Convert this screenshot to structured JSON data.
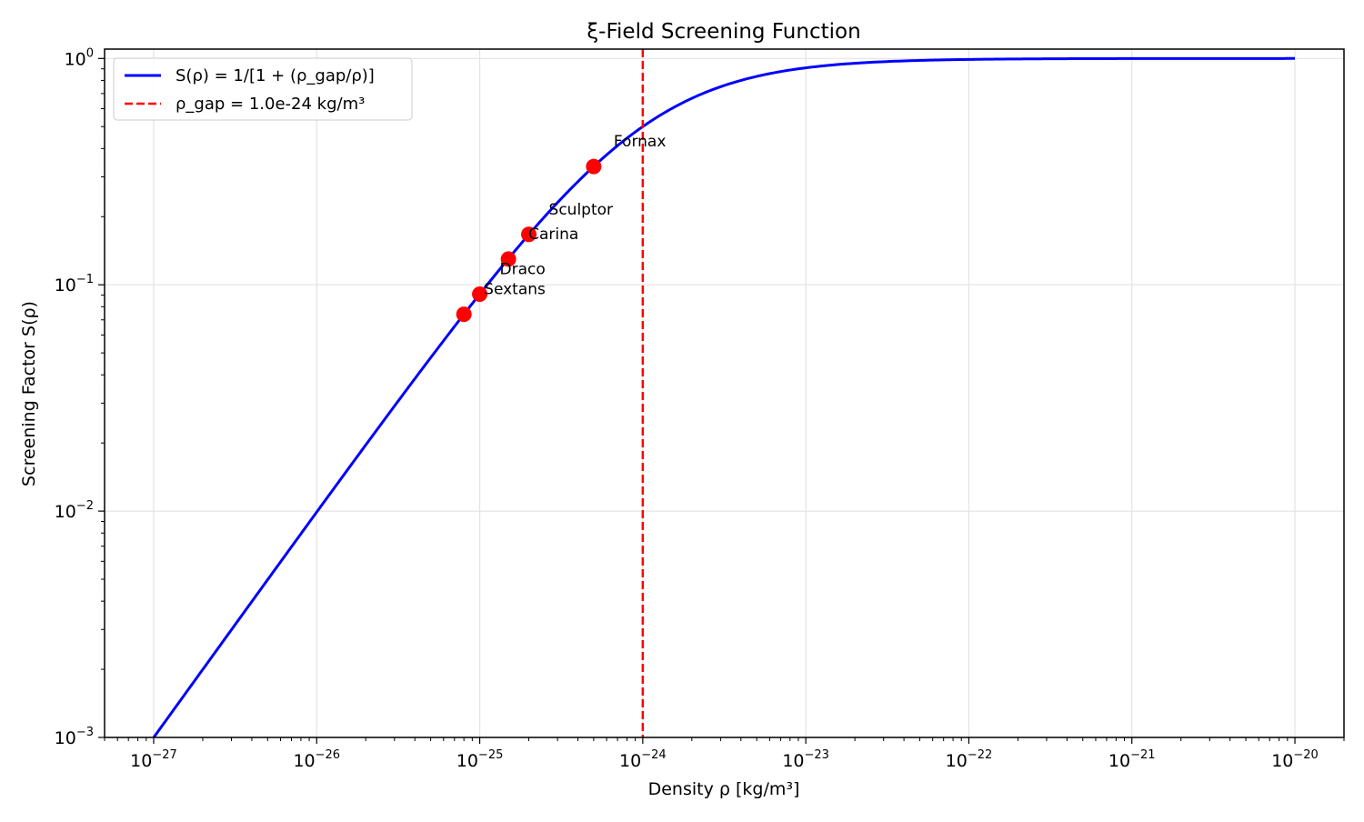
{
  "chart_data": {
    "type": "line",
    "title": "ξ-Field Screening Function",
    "xlabel": "Density ρ [kg/m³]",
    "ylabel": "Screening Factor S(ρ)",
    "x_scale": "log",
    "y_scale": "log",
    "xlim": [
      5e-28,
      2e-20
    ],
    "ylim": [
      0.001,
      1.1
    ],
    "grid": true,
    "x_ticks": [
      {
        "value": 1e-27,
        "base": "10",
        "exp": "−27"
      },
      {
        "value": 1e-26,
        "base": "10",
        "exp": "−26"
      },
      {
        "value": 1e-25,
        "base": "10",
        "exp": "−25"
      },
      {
        "value": 1e-24,
        "base": "10",
        "exp": "−24"
      },
      {
        "value": 1e-23,
        "base": "10",
        "exp": "−23"
      },
      {
        "value": 1e-22,
        "base": "10",
        "exp": "−22"
      },
      {
        "value": 1e-21,
        "base": "10",
        "exp": "−21"
      },
      {
        "value": 1e-20,
        "base": "10",
        "exp": "−20"
      }
    ],
    "y_ticks": [
      {
        "value": 0.001,
        "base": "10",
        "exp": "−3"
      },
      {
        "value": 0.01,
        "base": "10",
        "exp": "−2"
      },
      {
        "value": 0.1,
        "base": "10",
        "exp": "−1"
      },
      {
        "value": 1,
        "base": "10",
        "exp": "0"
      }
    ],
    "series": [
      {
        "name": "S(ρ) = 1/[1 + (ρ_gap/ρ)]",
        "kind": "line",
        "color": "#0000ff",
        "rho_gap": 1e-24,
        "x_range": [
          1e-27,
          1e-20
        ]
      },
      {
        "name": "ρ_gap = 1.0e-24 kg/m³",
        "kind": "vline",
        "color": "#ff0000",
        "dashed": true,
        "x": 1e-24
      }
    ],
    "points": [
      {
        "label": "Fornax",
        "x": 5e-25,
        "y": 0.333
      },
      {
        "label": "Sculptor",
        "x": 2e-25,
        "y": 0.167
      },
      {
        "label": "Carina",
        "x": 1.5e-25,
        "y": 0.13
      },
      {
        "label": "Draco",
        "x": 1e-25,
        "y": 0.0909
      },
      {
        "label": "Sextans",
        "x": 8e-26,
        "y": 0.0741
      }
    ],
    "point_color": "#ff0000",
    "legend_position": "upper-left"
  }
}
